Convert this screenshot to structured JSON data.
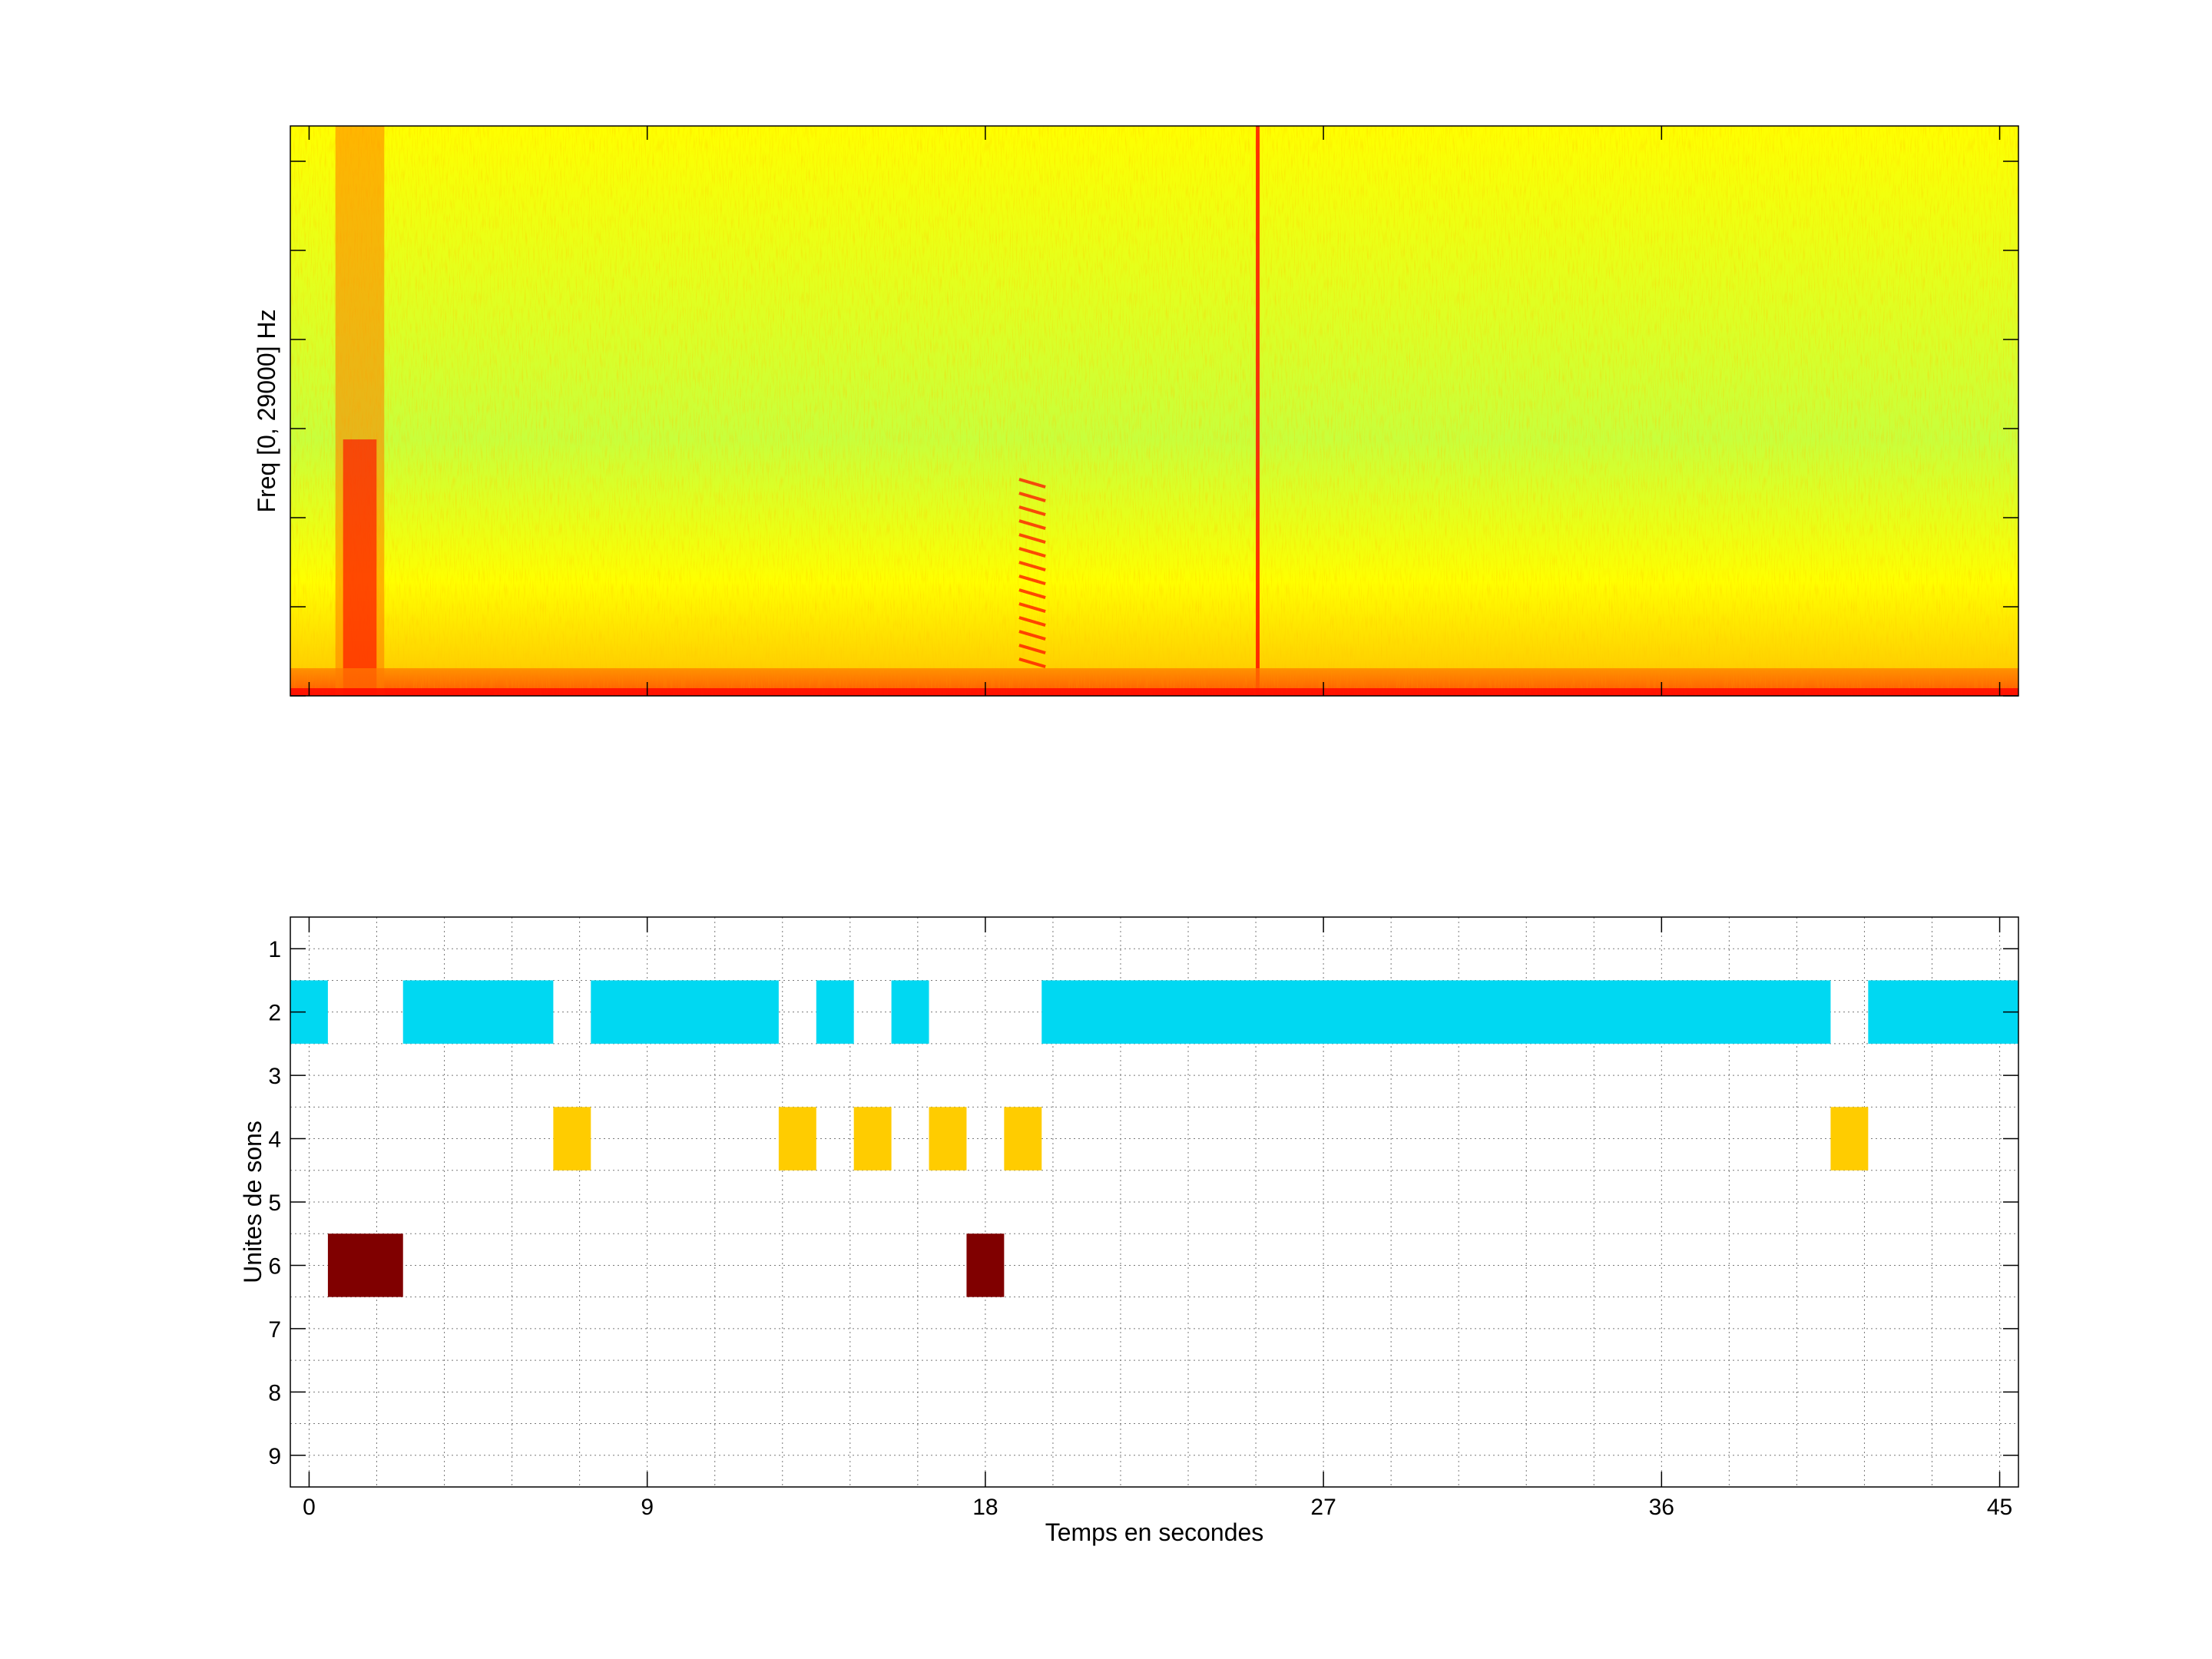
{
  "chart_data": [
    {
      "type": "heatmap",
      "title": "",
      "xlabel": "",
      "ylabel": "Freq [0, 29000] Hz",
      "xlim": [
        -0.5,
        45.5
      ],
      "ylim": [
        0,
        29000
      ],
      "colormap": [
        "#ff0000",
        "#ff7a00",
        "#ffd000",
        "#ffff00",
        "#c8ff3c"
      ],
      "features": [
        {
          "label": "broadband burst",
          "x": [
            0.7,
            2.0
          ],
          "intensity": 0.85
        },
        {
          "label": "click pulse train",
          "x": [
            18.9,
            19.6
          ],
          "intensity": 0.7
        },
        {
          "label": "vertical line",
          "x": [
            25.2,
            25.3
          ],
          "intensity": 0.8
        },
        {
          "label": "low-frequency band",
          "x": [
            -0.5,
            45.5
          ],
          "intensity": 0.7
        }
      ]
    },
    {
      "type": "bar",
      "orientation": "horizontal-intervals",
      "xlabel": "Temps en secondes",
      "ylabel": "Unites de sons",
      "xlim": [
        -0.5,
        45.5
      ],
      "ylim": [
        0.5,
        9.5
      ],
      "xticks": [
        0,
        9,
        18,
        27,
        36,
        45
      ],
      "yticks": [
        1,
        2,
        3,
        4,
        5,
        6,
        7,
        8,
        9
      ],
      "grid": true,
      "series": [
        {
          "unit": 2,
          "color": "#00d8f2",
          "intervals": [
            [
              -0.5,
              0.5
            ],
            [
              2.5,
              6.5
            ],
            [
              7.5,
              12.5
            ],
            [
              13.5,
              14.5
            ],
            [
              15.5,
              16.5
            ],
            [
              19.5,
              40.5
            ],
            [
              41.5,
              45.5
            ]
          ]
        },
        {
          "unit": 4,
          "color": "#ffcc00",
          "intervals": [
            [
              6.5,
              7.5
            ],
            [
              12.5,
              13.5
            ],
            [
              14.5,
              15.5
            ],
            [
              16.5,
              17.5
            ],
            [
              18.5,
              19.5
            ],
            [
              40.5,
              41.5
            ]
          ]
        },
        {
          "unit": 6,
          "color": "#800000",
          "intervals": [
            [
              0.5,
              2.5
            ],
            [
              17.5,
              18.5
            ]
          ]
        }
      ]
    }
  ]
}
